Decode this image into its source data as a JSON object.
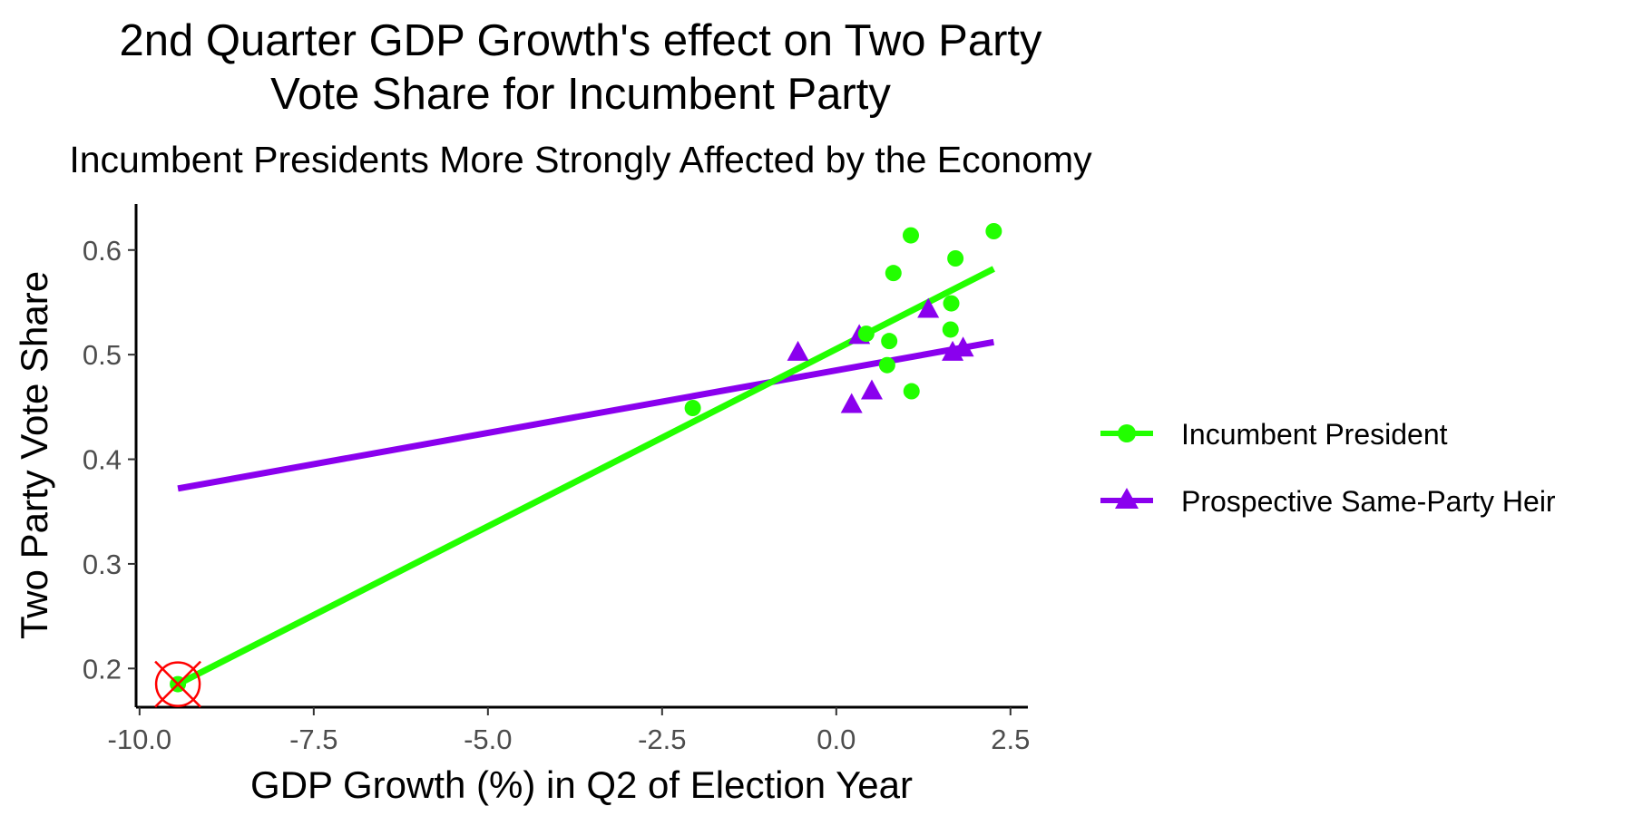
{
  "chart_data": {
    "type": "scatter",
    "title": [
      "2nd Quarter GDP Growth's effect on Two Party",
      "Vote Share for Incumbent Party"
    ],
    "subtitle": "Incumbent Presidents More Strongly Affected by the Economy",
    "xlabel": "GDP Growth (%) in Q2 of Election Year",
    "ylabel": "Two Party Vote Share",
    "xlim": [
      -10.05,
      2.75
    ],
    "ylim": [
      0.163,
      0.644
    ],
    "x_ticks": [
      -10.0,
      -7.5,
      -5.0,
      -2.5,
      0.0,
      2.5
    ],
    "x_tick_labels": [
      "-10.0",
      "-7.5",
      "-5.0",
      "-2.5",
      "0.0",
      "2.5"
    ],
    "y_ticks": [
      0.2,
      0.3,
      0.4,
      0.5,
      0.6
    ],
    "y_tick_labels": [
      "0.2",
      "0.3",
      "0.4",
      "0.5",
      "0.6"
    ],
    "grid": false,
    "legend_position": "right",
    "series": [
      {
        "name": "Incumbent President",
        "color": "#22ff00",
        "marker": "circle",
        "points": [
          {
            "x": -2.06,
            "y": 0.449
          },
          {
            "x": 0.43,
            "y": 0.52
          },
          {
            "x": 0.76,
            "y": 0.513
          },
          {
            "x": 0.73,
            "y": 0.49
          },
          {
            "x": 0.82,
            "y": 0.578
          },
          {
            "x": 1.07,
            "y": 0.614
          },
          {
            "x": 1.08,
            "y": 0.465
          },
          {
            "x": 1.65,
            "y": 0.549
          },
          {
            "x": 1.64,
            "y": 0.524
          },
          {
            "x": 1.71,
            "y": 0.592
          },
          {
            "x": 2.26,
            "y": 0.618
          },
          {
            "x": -9.45,
            "y": 0.185
          }
        ],
        "fit": {
          "x": [
            -9.45,
            2.26
          ],
          "y": [
            0.185,
            0.582
          ]
        }
      },
      {
        "name": "Prospective Same-Party Heir",
        "color": "#8a00ee",
        "marker": "triangle",
        "points": [
          {
            "x": -0.55,
            "y": 0.502
          },
          {
            "x": 0.33,
            "y": 0.518
          },
          {
            "x": 0.22,
            "y": 0.452
          },
          {
            "x": 0.51,
            "y": 0.465
          },
          {
            "x": 1.32,
            "y": 0.543
          },
          {
            "x": 1.67,
            "y": 0.502
          },
          {
            "x": 1.82,
            "y": 0.506
          }
        ],
        "fit": {
          "x": [
            -9.45,
            2.26
          ],
          "y": [
            0.372,
            0.512
          ]
        }
      }
    ],
    "annotations": [
      {
        "type": "crossed-circle",
        "x": -9.45,
        "y": 0.185,
        "color": "#ff0000"
      }
    ]
  }
}
